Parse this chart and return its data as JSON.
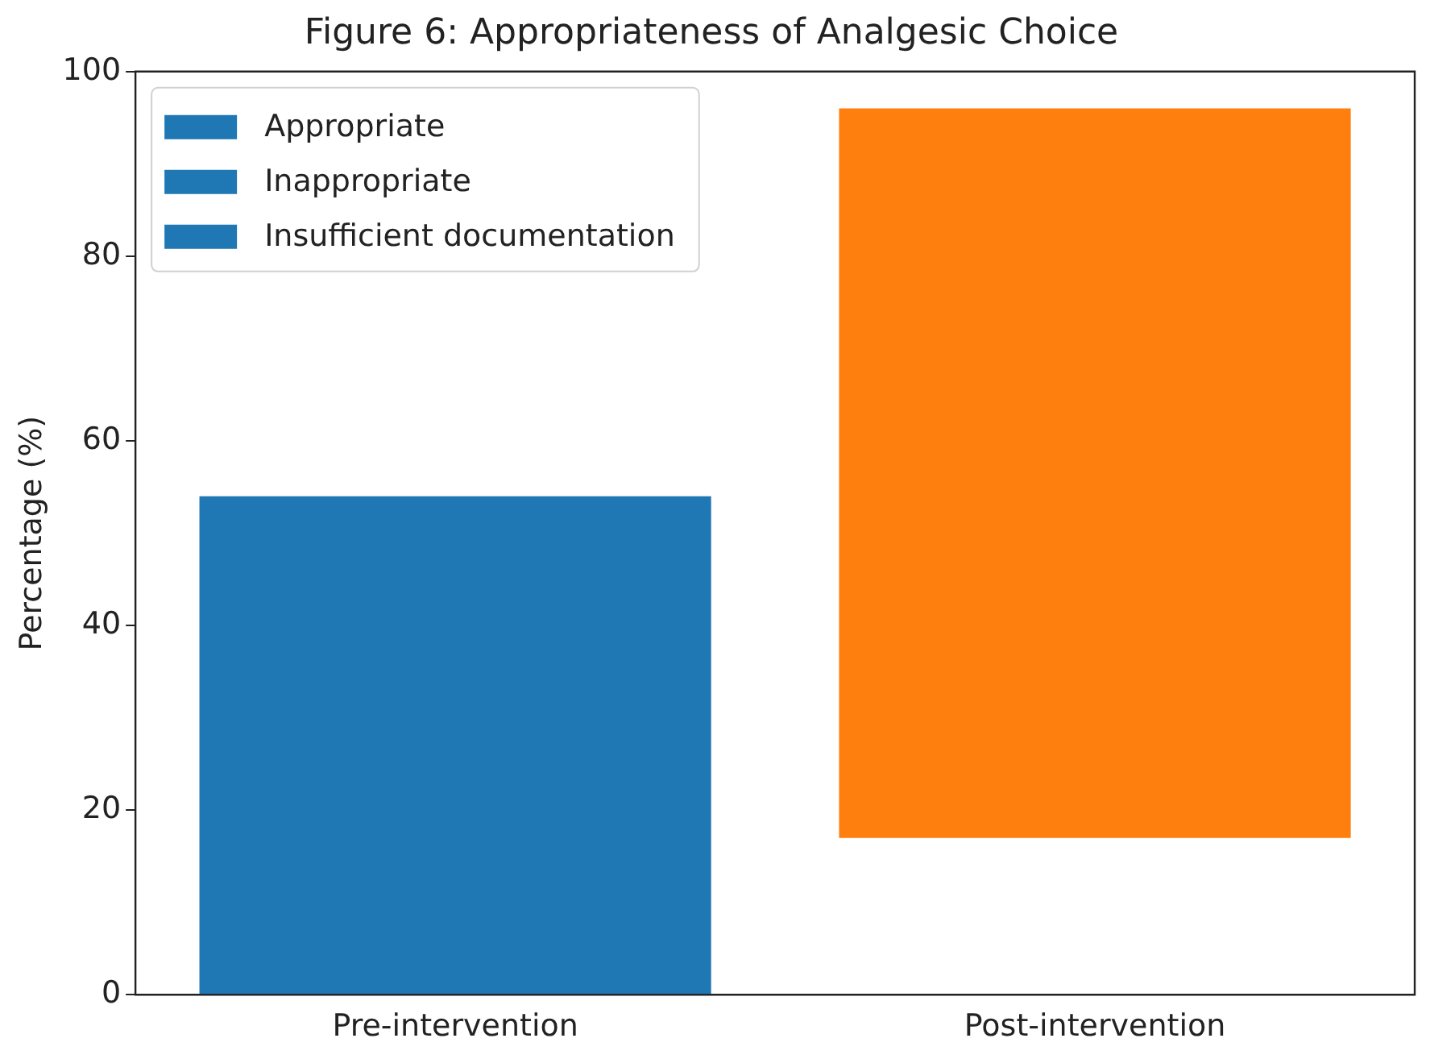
{
  "chart_data": {
    "type": "bar",
    "title": "Figure 6: Appropriateness of Analgesic Choice",
    "ylabel": "Percentage (%)",
    "categories": [
      "Pre-intervention",
      "Post-intervention"
    ],
    "series": [
      {
        "name": "Appropriate",
        "color": "#1f77b4",
        "colors": [
          "#1f77b4",
          "#ff7f0e"
        ],
        "values": [
          54,
          79
        ],
        "base": [
          0,
          17
        ]
      },
      {
        "name": "Inappropriate",
        "color": "#1f77b4",
        "values": [
          null,
          null
        ]
      },
      {
        "name": "Insufficient documentation",
        "color": "#1f77b4",
        "values": [
          null,
          null
        ]
      }
    ],
    "ylim": [
      0,
      100
    ],
    "yticks": [
      0,
      20,
      40,
      60,
      80,
      100
    ],
    "grid": false,
    "legend": "top left"
  }
}
